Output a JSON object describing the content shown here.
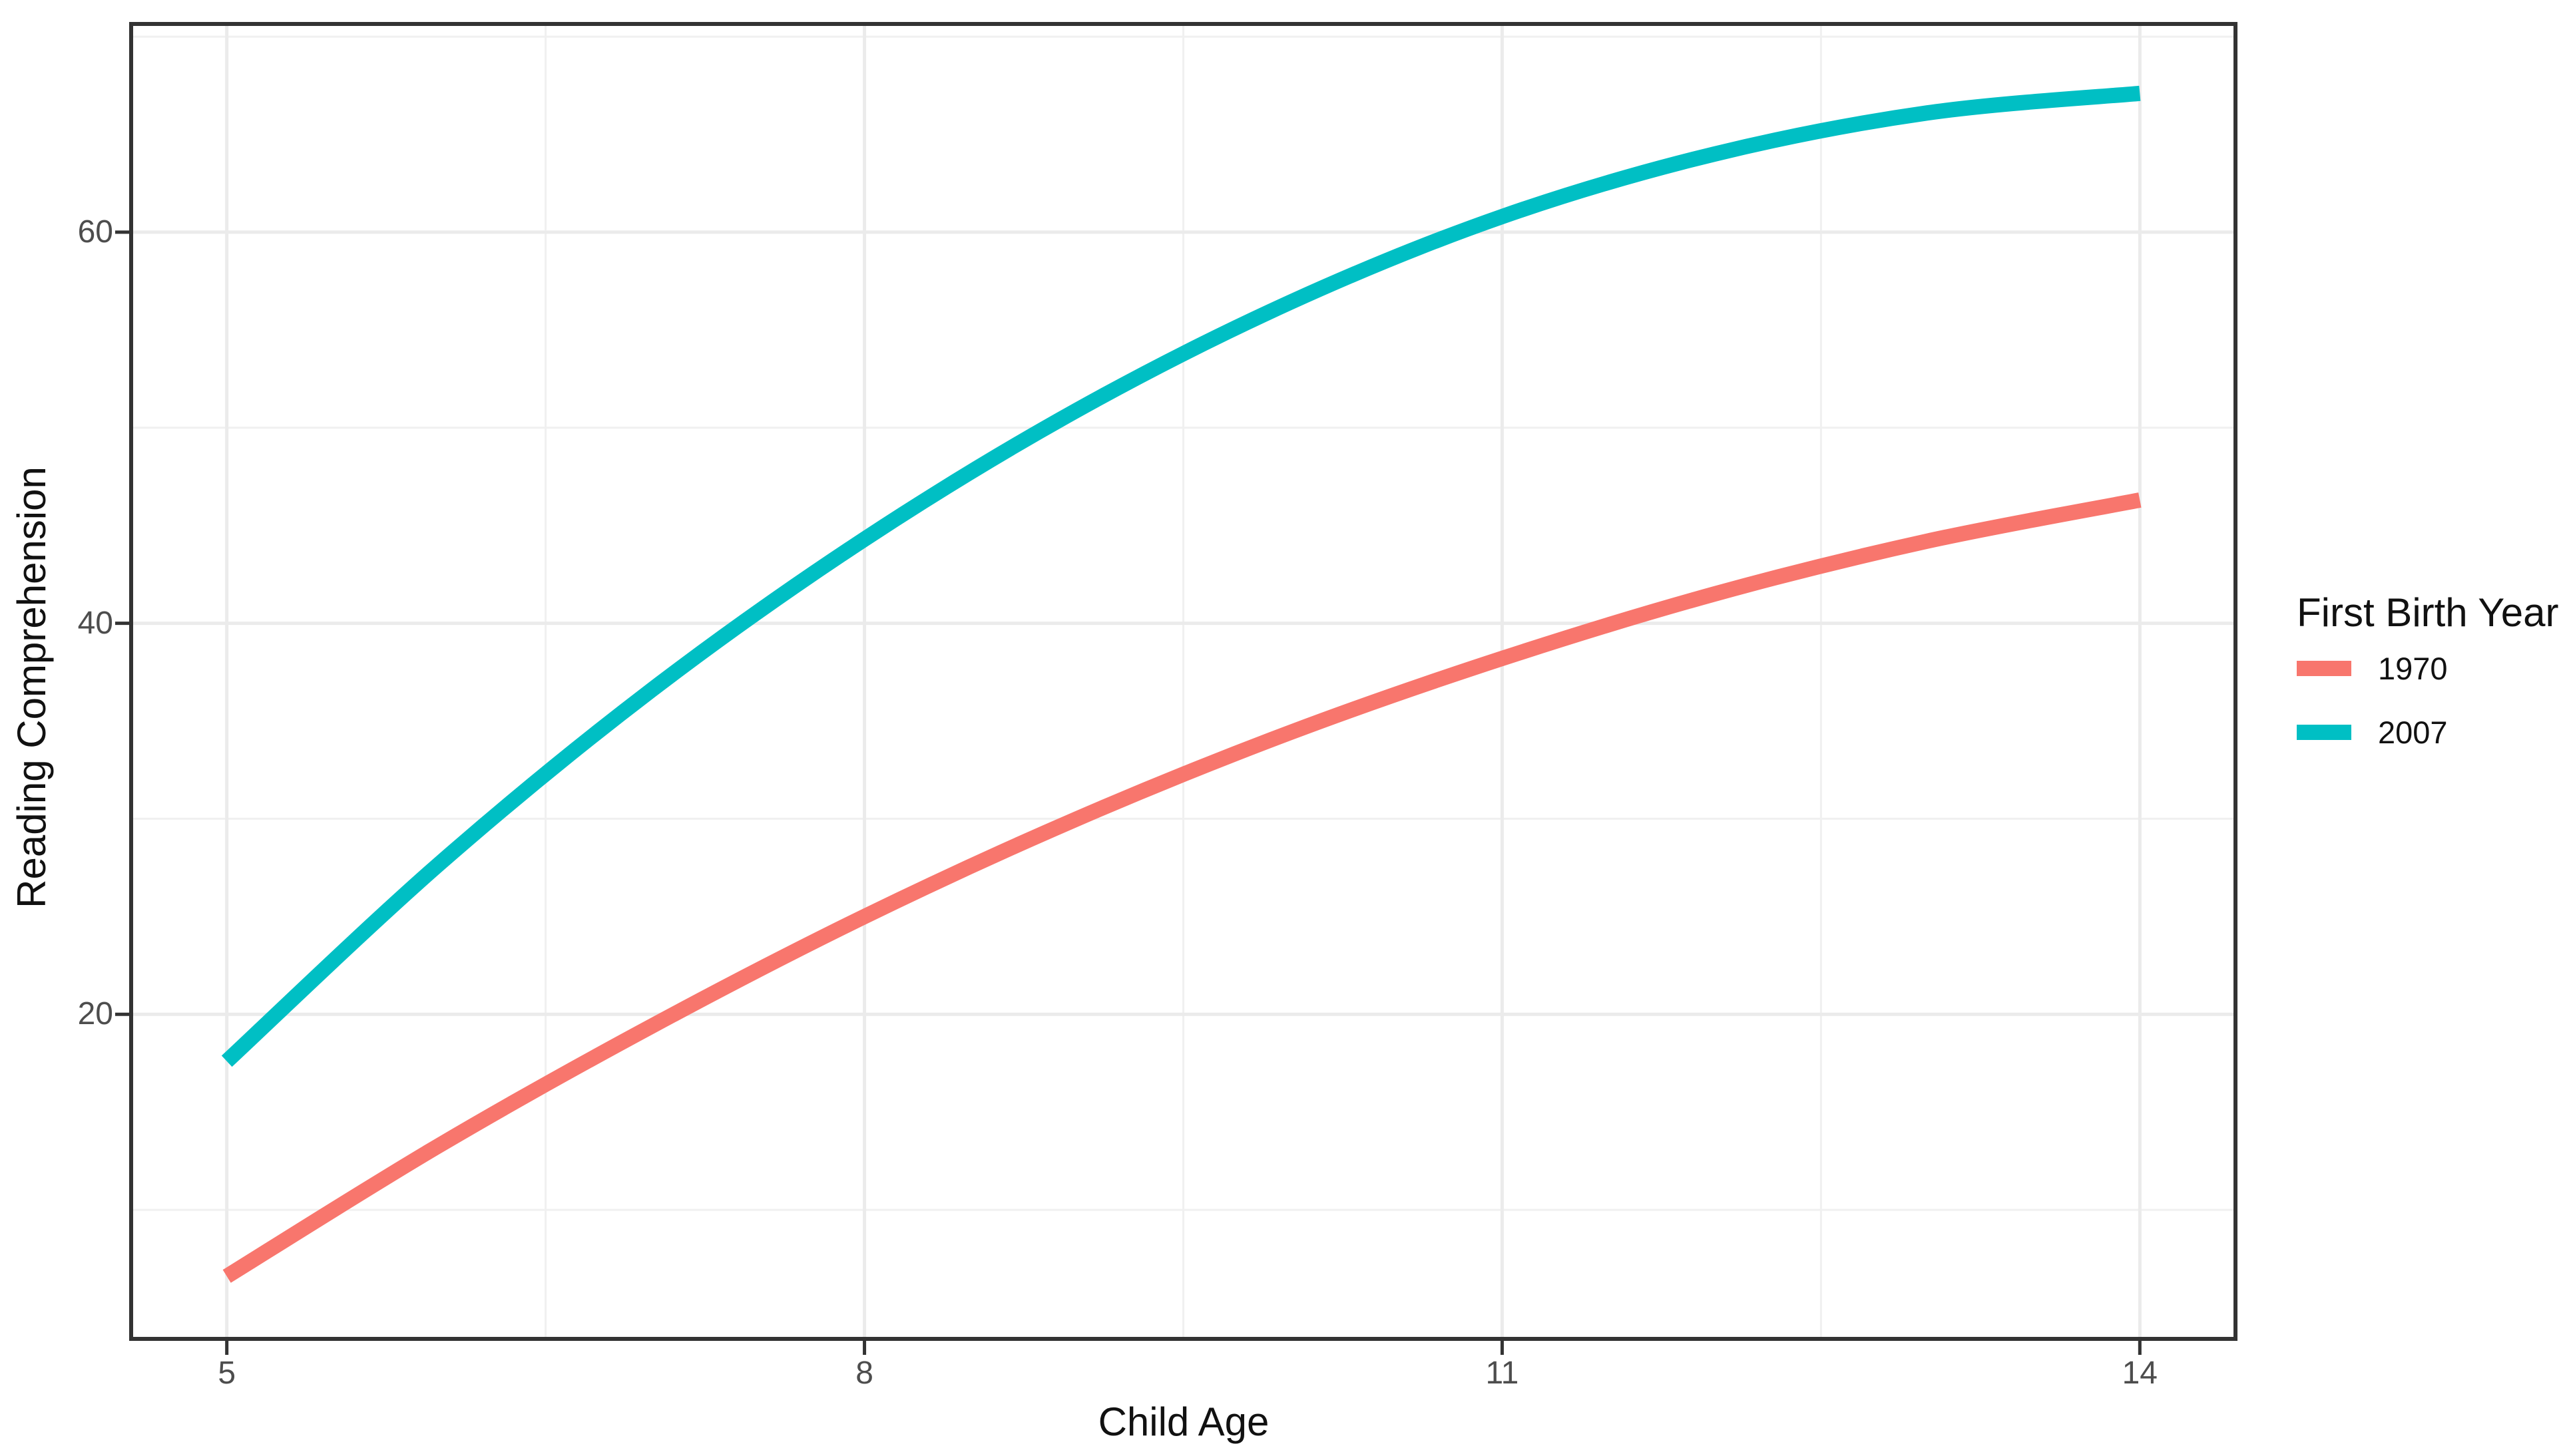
{
  "chart_data": {
    "type": "line",
    "title": "",
    "xlabel": "Child Age",
    "ylabel": "Reading Comprehension",
    "x": [
      5,
      6,
      7,
      8,
      9,
      10,
      11,
      12,
      13,
      14
    ],
    "series": [
      {
        "name": "1970",
        "color": "#F8766D",
        "values": [
          6.6,
          13.3,
          19.4,
          25.0,
          30.0,
          34.4,
          38.2,
          41.5,
          44.2,
          46.3
        ]
      },
      {
        "name": "2007",
        "color": "#00BFC4",
        "values": [
          17.6,
          27.7,
          36.6,
          44.3,
          50.9,
          56.4,
          60.8,
          64.0,
          66.1,
          67.1
        ]
      }
    ],
    "legend_title": "First Birth Year",
    "legend_position": "right",
    "x_ticks": [
      5,
      8,
      11,
      14
    ],
    "x_tick_labels": [
      "5",
      "8",
      "11",
      "14"
    ],
    "y_ticks": [
      20,
      40,
      60
    ],
    "y_tick_labels": [
      "20",
      "40",
      "60"
    ],
    "x_minor_gridlines": [
      6.5,
      9.5,
      12.5
    ],
    "y_minor_gridlines": [
      10,
      30,
      50,
      70
    ],
    "xlim": [
      4.55,
      14.45
    ],
    "ylim": [
      3.4,
      70.65
    ],
    "grid": true,
    "theme": {
      "panel_background": "#FFFFFF",
      "major_grid_color": "#EBEBEB",
      "minor_grid_color": "#F0F0F0",
      "panel_border_color": "#333333",
      "tick_mark_color": "#333333",
      "axis_text_color": "#4D4D4D",
      "title_text_color": "#111111"
    }
  }
}
